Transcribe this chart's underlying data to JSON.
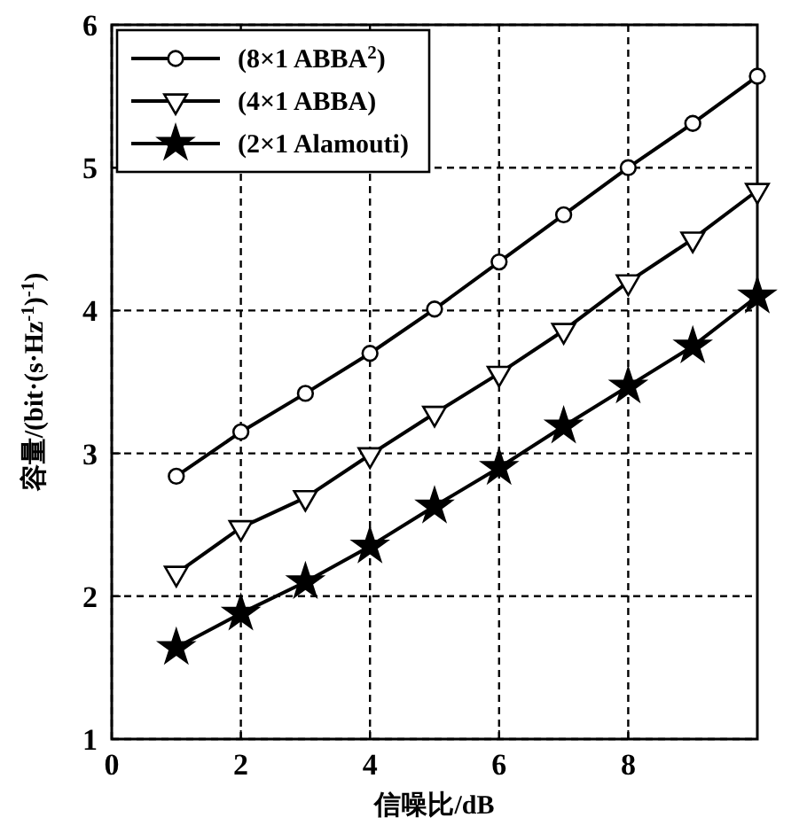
{
  "chart_data": {
    "type": "line",
    "xlabel": "信噪比/dB",
    "ylabel": "容量/(bit·(s·Hz$^{-1}$)$^{-1}$)",
    "x": [
      1,
      2,
      3,
      4,
      5,
      6,
      7,
      8,
      9,
      10
    ],
    "xlim": [
      0,
      10
    ],
    "xticks": [
      0,
      2,
      4,
      6,
      8
    ],
    "ylim": [
      1,
      6
    ],
    "yticks": [
      1,
      2,
      3,
      4,
      5,
      6
    ],
    "grid": true,
    "legend": "top left",
    "line_style": "solid",
    "series": [
      {
        "name": "(8×1 ABBA$^{2}$)",
        "color": "#000000",
        "marker": "circle",
        "values": [
          2.84,
          3.15,
          3.42,
          3.7,
          4.01,
          4.34,
          4.67,
          5.0,
          5.31,
          5.64
        ]
      },
      {
        "name": "(4×1 ABBA)",
        "color": "#000000",
        "marker": "triangle",
        "values": [
          2.16,
          2.48,
          2.69,
          2.99,
          3.28,
          3.56,
          3.86,
          4.2,
          4.5,
          4.84
        ]
      },
      {
        "name": "(2×1 Alamouti)",
        "color": "#000000",
        "marker": "star",
        "values": [
          1.64,
          1.88,
          2.1,
          2.35,
          2.63,
          2.9,
          3.19,
          3.47,
          3.75,
          4.1
        ]
      }
    ]
  }
}
